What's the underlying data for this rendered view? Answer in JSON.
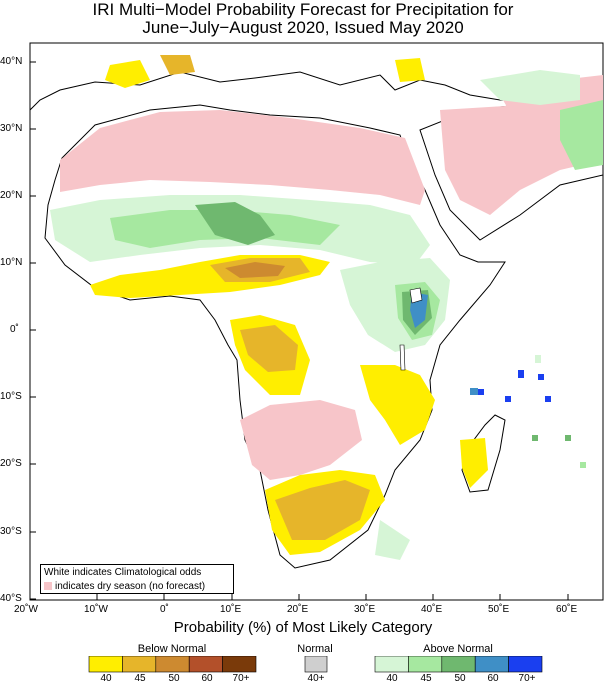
{
  "title_line1": "IRI Multi−Model Probability Forecast for Precipitation for",
  "title_line2": "June−July−August 2020, Issued May 2020",
  "x_axis_title": "Probability (%) of Most Likely Category",
  "lat_labels": [
    "40°N",
    "30°N",
    "20°N",
    "10°N",
    "0˚",
    "10°S",
    "20°S",
    "30°S",
    "40°S"
  ],
  "lon_labels": [
    "20˚W",
    "10˚W",
    "0˚",
    "10˚E",
    "20˚E",
    "30˚E",
    "40˚E",
    "50˚E",
    "60˚E"
  ],
  "legend_note1": "White indicates Climatological odds",
  "legend_note2": "indicates dry season (no forecast)",
  "colorbar": {
    "below": {
      "label": "Below Normal",
      "ticks": [
        "40",
        "45",
        "50",
        "60",
        "70+"
      ],
      "colors": [
        "#ffee00",
        "#e6b52a",
        "#cd8a30",
        "#b3502a",
        "#7a3a0a"
      ]
    },
    "normal": {
      "label": "Normal",
      "ticks": [
        "40+"
      ],
      "colors": [
        "#cfcfcf"
      ]
    },
    "above": {
      "label": "Above Normal",
      "ticks": [
        "40",
        "45",
        "50",
        "60",
        "70+"
      ],
      "colors": [
        "#d6f5d6",
        "#a6e8a0",
        "#6fb86f",
        "#3f8fc6",
        "#1a3ff0"
      ]
    }
  },
  "colors": {
    "dry_season": "#f7c5c9",
    "ocean": "#ffffff",
    "border": "#000000"
  }
}
